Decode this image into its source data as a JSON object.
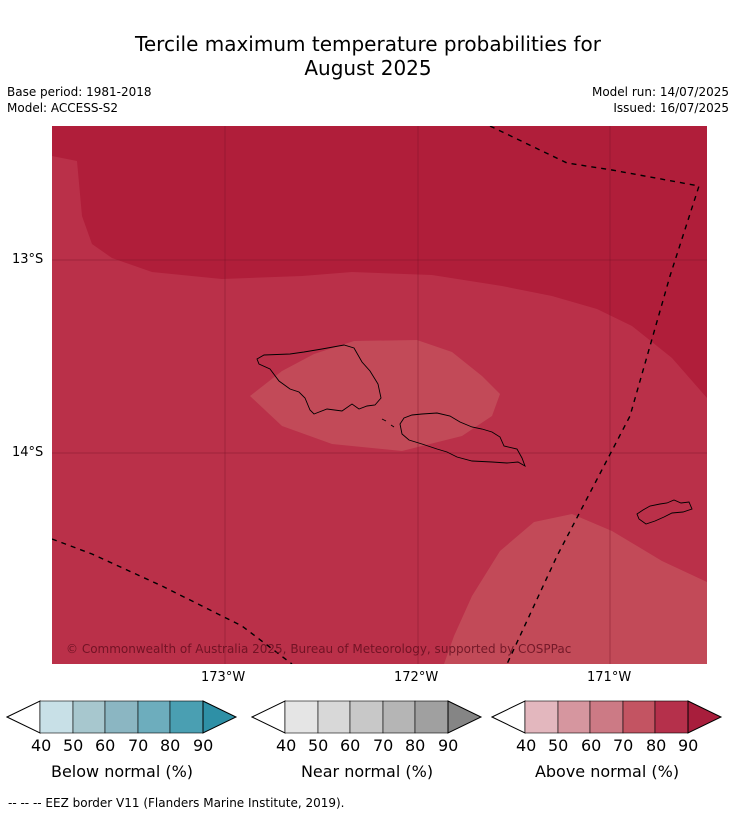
{
  "title_line1": "Tercile maximum temperature probabilities for",
  "title_line2": "August 2025",
  "base_period": "Base period: 1981-2018",
  "model": "Model: ACCESS-S2",
  "model_run": "Model run: 14/07/2025",
  "issued": "Issued: 16/07/2025",
  "copyright": "© Commonwealth of Australia 2025, Bureau of Meteorology, supported by COSPPac",
  "lat_labels": [
    "13°S",
    "14°S"
  ],
  "lon_labels": [
    "173°W",
    "172°W",
    "171°W"
  ],
  "colorbars": [
    {
      "label": "Below normal (%)",
      "ticks": [
        "40",
        "50",
        "60",
        "70",
        "80",
        "90"
      ],
      "colors": [
        "#ffffff",
        "#c8e0e7",
        "#a7c7ce",
        "#8bb6c2",
        "#6dadbd",
        "#4a9fb2",
        "#2e90a6"
      ]
    },
    {
      "label": "Near normal (%)",
      "ticks": [
        "40",
        "50",
        "60",
        "70",
        "80",
        "90"
      ],
      "colors": [
        "#ffffff",
        "#e5e5e5",
        "#d8d8d8",
        "#c8c8c8",
        "#b5b5b5",
        "#a0a0a0",
        "#858585"
      ]
    },
    {
      "label": "Above normal (%)",
      "ticks": [
        "40",
        "50",
        "60",
        "70",
        "80",
        "90"
      ],
      "colors": [
        "#ffffff",
        "#e3b7be",
        "#d6969f",
        "#cc7a85",
        "#c35462",
        "#b5304b",
        "#a81e3c"
      ]
    }
  ],
  "footnote": "--  --  -- EEZ border V11 (Flanders Marine Institute, 2019).",
  "map_colors": {
    "c90": "#b01e3a",
    "c80": "#ba3049",
    "c70": "#c24a58",
    "coast": "#000000"
  }
}
